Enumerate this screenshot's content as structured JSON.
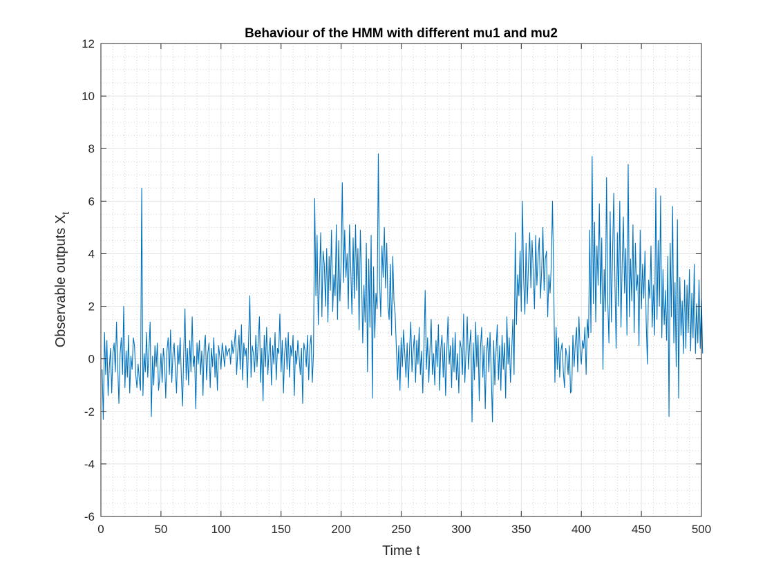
{
  "chart_data": {
    "type": "line",
    "title": "Behaviour of the HMM with different mu1 and mu2",
    "xlabel": "Time t",
    "ylabel_main": "Observable outputs X",
    "ylabel_sub": "t",
    "xlim": [
      0,
      500
    ],
    "ylim": [
      -6,
      12
    ],
    "xticks": [
      0,
      50,
      100,
      150,
      200,
      250,
      300,
      350,
      400,
      450,
      500
    ],
    "yticks": [
      -6,
      -4,
      -2,
      0,
      2,
      4,
      6,
      8,
      10,
      12
    ],
    "x_tick_labels": [
      "0",
      "50",
      "100",
      "150",
      "200",
      "250",
      "300",
      "350",
      "400",
      "450",
      "500"
    ],
    "y_tick_labels": [
      "-6",
      "-4",
      "-2",
      "0",
      "2",
      "4",
      "6",
      "8",
      "10",
      "12"
    ],
    "grid": true,
    "minor_grid": true,
    "line_color": "#0072BD",
    "series": [
      {
        "x_start": 1,
        "x_step": 1,
        "values": [
          -0.4,
          -2.3,
          1.0,
          -0.6,
          0.7,
          -1.4,
          -0.3,
          0.4,
          -1.3,
          0.2,
          0.6,
          -0.5,
          1.4,
          -0.3,
          -1.7,
          0.2,
          0.8,
          -0.6,
          2.0,
          -1.1,
          0.3,
          -0.7,
          0.9,
          -1.3,
          0.1,
          -0.4,
          0.8,
          0.5,
          -0.6,
          -1.1,
          -0.2,
          -0.8,
          -1.2,
          6.5,
          -1.4,
          0.2,
          -0.5,
          1.0,
          -0.7,
          0.3,
          1.4,
          -2.2,
          0.1,
          -1.0,
          0.5,
          -0.3,
          0.6,
          -1.2,
          -0.7,
          0.2,
          -0.9,
          0.4,
          -0.1,
          -1.5,
          0.3,
          0.8,
          -0.6,
          1.1,
          -0.9,
          0.2,
          0.6,
          -0.4,
          -1.3,
          0.5,
          -0.2,
          0.8,
          -0.7,
          -1.8,
          0.3,
          1.9,
          -0.8,
          0.4,
          -1.0,
          0.7,
          -0.5,
          1.6,
          -0.3,
          0.1,
          -1.9,
          0.6,
          -0.2,
          0.7,
          -0.6,
          0.3,
          -1.4,
          0.5,
          0.9,
          -0.8,
          0.2,
          0.6,
          -1.1,
          0.4,
          -0.3,
          0.8,
          -0.7,
          0.2,
          -1.2,
          0.5,
          0.1,
          -0.4,
          0.6,
          0.2,
          -0.3,
          0.5,
          0.1,
          0.3,
          0.4,
          -0.2,
          0.7,
          0.2,
          0.5,
          1.1,
          -0.6,
          0.3,
          0.9,
          -0.4,
          1.3,
          -0.8,
          0.6,
          0.1,
          0.4,
          -1.1,
          0.8,
          2.4,
          -0.7,
          0.5,
          0.2,
          -0.5,
          0.9,
          -0.3,
          0.7,
          1.6,
          -0.9,
          0.4,
          -1.6,
          0.9,
          -0.3,
          1.2,
          -0.6,
          0.3,
          0.8,
          -1.0,
          0.5,
          -0.2,
          1.0,
          -0.8,
          0.4,
          0.2,
          1.7,
          -0.5,
          0.7,
          -1.3,
          0.2,
          0.8,
          -0.4,
          1.0,
          -0.7,
          0.5,
          0.1,
          0.9,
          -1.4,
          0.3,
          -0.2,
          0.7,
          0.1,
          -0.6,
          0.4,
          -1.7,
          0.6,
          0.3,
          -0.3,
          0.9,
          -0.8,
          0.5,
          0.9,
          -0.9,
          0.2,
          6.1,
          2.4,
          4.7,
          1.3,
          3.0,
          4.8,
          1.6,
          4.1,
          3.6,
          2.0,
          4.2,
          1.4,
          3.9,
          2.6,
          4.9,
          1.8,
          3.2,
          2.4,
          5.1,
          1.5,
          4.5,
          2.2,
          3.7,
          6.7,
          2.9,
          4.9,
          3.1,
          4.0,
          1.9,
          5.1,
          3.5,
          1.7,
          4.6,
          2.3,
          5.1,
          2.6,
          4.2,
          1.1,
          4.9,
          3.2,
          0.6,
          2.8,
          1.4,
          4.4,
          -0.5,
          3.8,
          1.2,
          4.7,
          -1.5,
          3.5,
          0.8,
          2.5,
          1.9,
          7.8,
          3.0,
          1.6,
          4.3,
          3.1,
          5.0,
          2.7,
          4.4,
          2.0,
          1.5,
          3.6,
          0.9,
          3.9,
          2.2,
          1.7,
          0.4,
          -0.8,
          0.5,
          -1.2,
          0.8,
          -0.3,
          1.1,
          0.2,
          -0.7,
          0.6,
          -1.1,
          0.4,
          1.4,
          -0.5,
          0.3,
          0.9,
          -0.9,
          0.7,
          -0.2,
          1.2,
          -0.6,
          0.3,
          -1.3,
          0.5,
          2.6,
          -0.4,
          0.8,
          -0.9,
          0.4,
          1.5,
          -0.6,
          0.2,
          -1.0,
          0.7,
          -0.3,
          1.3,
          -1.2,
          0.4,
          0.9,
          -0.7,
          0.6,
          -1.4,
          0.3,
          1.6,
          -0.2,
          0.5,
          -1.1,
          0.8,
          -0.5,
          1.0,
          -0.8,
          0.2,
          -1.3,
          0.7,
          0.4,
          -0.6,
          1.7,
          -0.9,
          0.3,
          1.6,
          -0.4,
          0.5,
          1.1,
          -2.4,
          0.6,
          -0.8,
          1.4,
          -0.3,
          0.9,
          -1.6,
          0.4,
          1.2,
          -0.7,
          0.5,
          -1.9,
          0.2,
          0.8,
          -0.5,
          1.0,
          -0.6,
          -2.4,
          0.7,
          -1.0,
          0.3,
          1.3,
          -0.8,
          0.5,
          -1.2,
          0.9,
          -0.4,
          0.6,
          -1.5,
          1.6,
          -0.2,
          0.8,
          -0.9,
          0.3,
          1.5,
          -0.6,
          4.8,
          1.3,
          3.2,
          2.4,
          4.1,
          1.8,
          6.0,
          3.0,
          1.7,
          4.4,
          2.1,
          3.6,
          4.8,
          2.7,
          4.5,
          3.3,
          1.9,
          4.7,
          2.8,
          3.9,
          4.6,
          2.3,
          3.4,
          5.0,
          2.6,
          3.8,
          4.1,
          1.6,
          3.2,
          2.5,
          3.6,
          6.0,
          2.9,
          -0.9,
          1.2,
          -0.4,
          0.8,
          -0.7,
          0.3,
          0.6,
          -0.5,
          -1.1,
          0.4,
          0.1,
          -0.6,
          0.5,
          -1.3,
          -1.2,
          0.9,
          -0.3,
          0.6,
          1.2,
          -0.5,
          1.6,
          0.3,
          -0.2,
          0.7,
          0.4,
          1.2,
          -0.6,
          1.5,
          0.8,
          4.9,
          1.0,
          7.7,
          2.1,
          5.2,
          1.4,
          4.3,
          2.8,
          5.9,
          2.1,
          4.6,
          -0.4,
          3.4,
          1.8,
          6.9,
          2.2,
          0.6,
          5.6,
          1.4,
          4.0,
          6.3,
          2.8,
          0.4,
          4.8,
          2.0,
          6.0,
          1.2,
          3.6,
          5.4,
          2.5,
          4.2,
          0.9,
          7.4,
          1.6,
          3.8,
          2.2,
          5.1,
          1.0,
          4.4,
          2.6,
          3.2,
          0.5,
          4.9,
          1.9,
          3.6,
          2.3,
          4.1,
          1.4,
          -0.2,
          3.0,
          2.3,
          4.3,
          1.2,
          2.8,
          0.9,
          6.5,
          1.5,
          4.5,
          2.0,
          6.2,
          0.8,
          3.4,
          1.3,
          2.6,
          0.7,
          3.9,
          -2.2,
          4.4,
          1.6,
          5.8,
          0.6,
          2.9,
          -0.3,
          5.3,
          -1.5,
          3.1,
          0.9,
          2.2,
          0.2,
          3.0,
          0.4,
          2.8,
          1.0,
          3.4,
          0.3,
          2.5,
          0.8,
          3.6,
          0.2,
          2.1,
          0.6,
          3.0,
          0.4,
          2.3,
          0.2
        ]
      }
    ]
  }
}
